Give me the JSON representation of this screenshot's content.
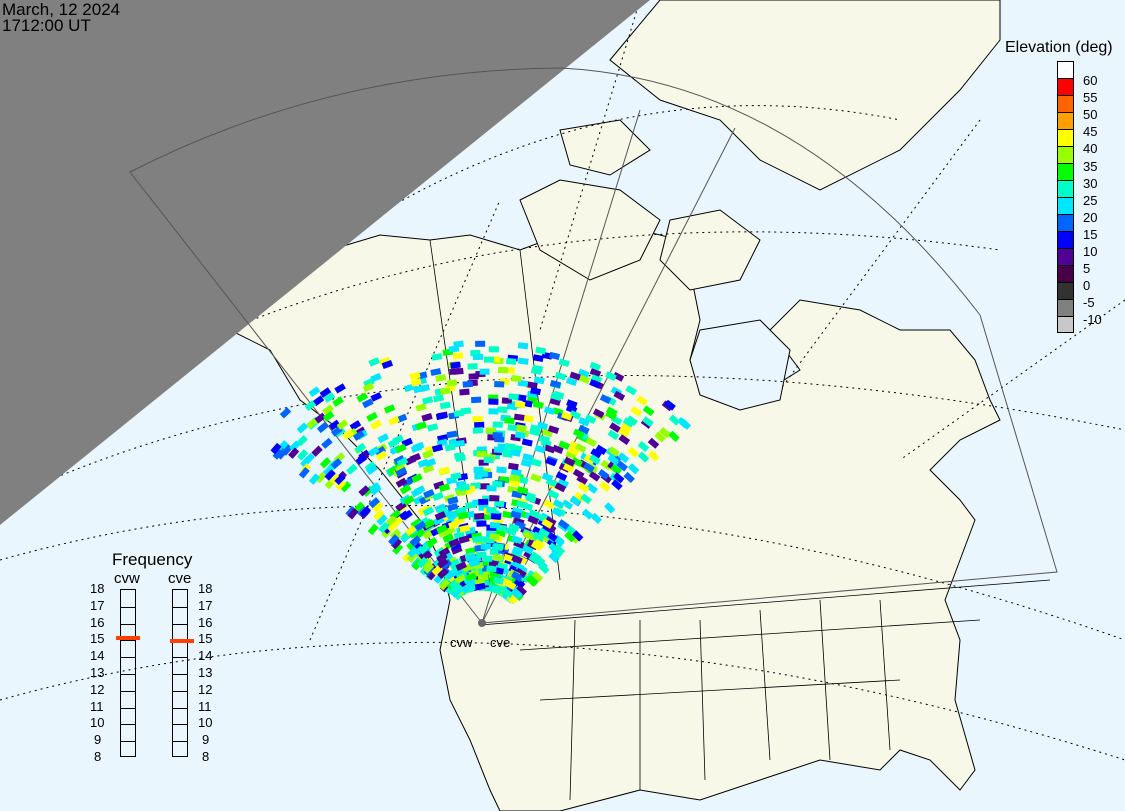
{
  "header": {
    "date": "March, 12 2024",
    "time": "1712:00 UT"
  },
  "colorbar": {
    "title": "Elevation (deg)",
    "colors": [
      "#ffffff",
      "#ff0000",
      "#ff6400",
      "#ffa000",
      "#ffff00",
      "#96ff00",
      "#00ff00",
      "#00ffc8",
      "#00e6ff",
      "#0064ff",
      "#0000ff",
      "#500096",
      "#480048",
      "#323232",
      "#808080",
      "#c8c8c8"
    ],
    "labels": [
      "60",
      "55",
      "50",
      "45",
      "40",
      "35",
      "30",
      "25",
      "20",
      "15",
      "10",
      "5",
      "0",
      "-5",
      "-10"
    ]
  },
  "frequency": {
    "title": "Frequency",
    "unit_range": [
      8,
      18
    ],
    "ticks": [
      "18",
      "17",
      "16",
      "15",
      "14",
      "13",
      "12",
      "11",
      "10",
      "9",
      "8"
    ],
    "radars": [
      {
        "name": "cvw",
        "value_mhz": 15.1
      },
      {
        "name": "cve",
        "value_mhz": 14.9
      }
    ],
    "marker_color": "#ff4000"
  },
  "map": {
    "ocean_color": "#eaf6fd",
    "land_color": "#f8f8e8",
    "night_color": "#808080",
    "radar_labels": [
      "cvw",
      "cve"
    ]
  }
}
